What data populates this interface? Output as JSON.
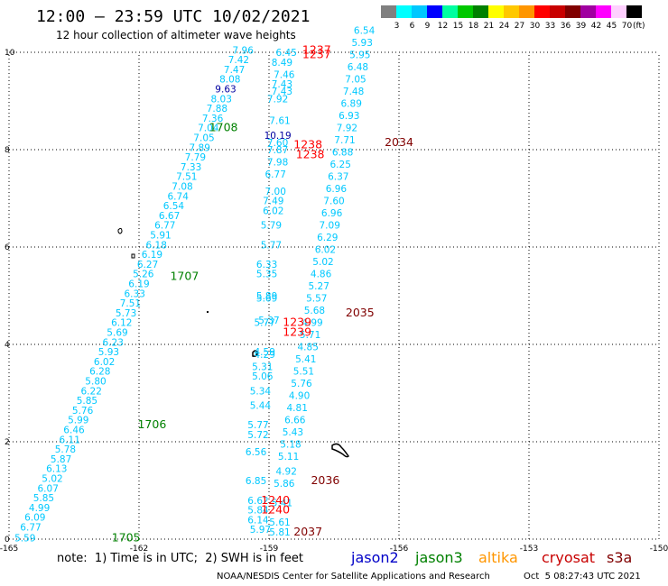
{
  "header": {
    "title": "12:00 — 23:59 UTC 10/02/2021",
    "subtitle": "12 hour collection of altimeter wave heights"
  },
  "scale": {
    "unit": "(ft)",
    "colors": [
      "#808080",
      "#00ffff",
      "#00c8ff",
      "#0000ff",
      "#00ffa0",
      "#00c800",
      "#008000",
      "#ffff00",
      "#ffc800",
      "#ff9600",
      "#ff0000",
      "#c80000",
      "#800000",
      "#a000a0",
      "#ff00ff",
      "#ffd0ff",
      "#000000"
    ],
    "labels": [
      "3",
      "6",
      "9",
      "12",
      "15",
      "18",
      "21",
      "24",
      "27",
      "30",
      "33",
      "36",
      "39",
      "42",
      "45",
      "70"
    ]
  },
  "axes": {
    "x_ticks": [
      "-165",
      "-162",
      "-159",
      "-156",
      "-153",
      "-150"
    ],
    "y_ticks": [
      "0",
      "2",
      "4",
      "6",
      "8",
      "10"
    ]
  },
  "colors": {
    "jason2": "#0000c8",
    "jason3": "#008000",
    "altika": "#ff9600",
    "cryosat": "#c80000",
    "s3a": "#800000",
    "cyan": "#00c8ff",
    "cyan_light": "#40e0f0",
    "dark_blue": "#0000a0",
    "green": "#008000",
    "red": "#ff0000",
    "dark_red": "#800000",
    "grid": "#000000"
  },
  "passes": [
    {
      "name": "track-a",
      "points": [
        [
          -164.63,
          0.03,
          "5.59",
          "cyan"
        ],
        [
          -164.5,
          0.25,
          "6.77",
          "cyan"
        ],
        [
          -164.4,
          0.45,
          "6.09",
          "cyan"
        ],
        [
          -164.3,
          0.65,
          "4.99",
          "cyan"
        ],
        [
          -164.2,
          0.85,
          "5.85",
          "cyan"
        ],
        [
          -164.1,
          1.05,
          "6.07",
          "cyan"
        ],
        [
          -164.0,
          1.25,
          "5.02",
          "cyan"
        ],
        [
          -163.9,
          1.45,
          "6.13",
          "cyan"
        ],
        [
          -163.8,
          1.65,
          "5.87",
          "cyan"
        ],
        [
          -163.7,
          1.85,
          "5.78",
          "cyan"
        ],
        [
          -163.6,
          2.05,
          "6.11",
          "cyan"
        ],
        [
          -163.5,
          2.25,
          "6.46",
          "cyan"
        ],
        [
          -163.4,
          2.45,
          "5.99",
          "cyan"
        ],
        [
          -163.3,
          2.65,
          "5.76",
          "cyan"
        ],
        [
          -163.2,
          2.85,
          "5.85",
          "cyan"
        ],
        [
          -163.1,
          3.05,
          "6.22",
          "cyan"
        ],
        [
          -163.0,
          3.25,
          "5.80",
          "cyan"
        ],
        [
          -162.9,
          3.45,
          "6.28",
          "cyan"
        ],
        [
          -162.8,
          3.65,
          "6.02",
          "cyan"
        ],
        [
          -162.7,
          3.85,
          "5.93",
          "cyan"
        ],
        [
          -162.6,
          4.05,
          "6.23",
          "cyan"
        ],
        [
          -162.5,
          4.25,
          "5.69",
          "cyan"
        ],
        [
          -162.4,
          4.45,
          "6.12",
          "cyan"
        ],
        [
          -162.3,
          4.65,
          "5.73",
          "cyan"
        ],
        [
          -162.2,
          4.85,
          "7.51",
          "cyan"
        ],
        [
          -162.1,
          5.05,
          "6.33",
          "cyan"
        ],
        [
          -162.0,
          5.25,
          "6.19",
          "cyan"
        ],
        [
          -161.9,
          5.45,
          "5.26",
          "cyan"
        ],
        [
          -161.8,
          5.65,
          "6.27",
          "cyan"
        ],
        [
          -161.7,
          5.85,
          "6.19",
          "cyan"
        ],
        [
          -161.6,
          6.05,
          "6.18",
          "cyan"
        ],
        [
          -161.5,
          6.25,
          "5.91",
          "cyan"
        ],
        [
          -161.4,
          6.45,
          "6.77",
          "cyan"
        ],
        [
          -161.3,
          6.65,
          "6.67",
          "cyan"
        ],
        [
          -161.2,
          6.85,
          "6.54",
          "cyan"
        ],
        [
          -161.1,
          7.05,
          "6.74",
          "cyan"
        ],
        [
          -161.0,
          7.25,
          "7.08",
          "cyan"
        ],
        [
          -160.9,
          7.45,
          "7.51",
          "cyan"
        ],
        [
          -160.8,
          7.65,
          "7.33",
          "cyan"
        ],
        [
          -160.7,
          7.85,
          "7.79",
          "cyan"
        ],
        [
          -160.6,
          8.05,
          "7.89",
          "cyan"
        ],
        [
          -160.5,
          8.25,
          "7.05",
          "cyan"
        ],
        [
          -160.4,
          8.45,
          "7.04",
          "cyan"
        ],
        [
          -160.3,
          8.65,
          "7.36",
          "cyan"
        ],
        [
          -160.2,
          8.85,
          "7.88",
          "cyan"
        ],
        [
          -160.1,
          9.05,
          "8.03",
          "cyan"
        ],
        [
          -160.0,
          9.25,
          "9.63",
          "dark_blue"
        ],
        [
          -159.9,
          9.45,
          "8.08",
          "cyan"
        ],
        [
          -159.8,
          9.65,
          "7.47",
          "cyan"
        ],
        [
          -159.7,
          9.85,
          "7.42",
          "cyan"
        ],
        [
          -159.6,
          10.05,
          "7.96",
          "cyan"
        ]
      ]
    },
    {
      "name": "track-b",
      "points": [
        [
          -159.2,
          0.2,
          "5.97",
          "cyan"
        ],
        [
          -159.25,
          0.4,
          "6.14",
          "cyan"
        ],
        [
          -159.25,
          0.6,
          "5.84",
          "cyan"
        ],
        [
          -159.25,
          0.8,
          "6.62",
          "cyan"
        ],
        [
          -159.3,
          1.2,
          "6.85",
          "cyan"
        ],
        [
          -159.3,
          1.8,
          "6.56",
          "cyan"
        ],
        [
          -159.25,
          2.15,
          "5.72",
          "cyan"
        ],
        [
          -159.25,
          2.35,
          "5.77",
          "cyan"
        ],
        [
          -159.2,
          2.75,
          "5.44",
          "cyan"
        ],
        [
          -159.2,
          3.05,
          "5.34",
          "cyan"
        ],
        [
          -159.15,
          3.35,
          "5.06",
          "cyan"
        ],
        [
          -159.15,
          3.55,
          "5.31",
          "cyan"
        ],
        [
          -159.1,
          3.85,
          "4.59",
          "cyan"
        ],
        [
          -159.1,
          4.45,
          "5.77",
          "cyan"
        ],
        [
          -159.0,
          4.5,
          "5.37",
          "cyan"
        ],
        [
          -159.05,
          4.95,
          "5.69",
          "cyan"
        ],
        [
          -159.05,
          5.45,
          "5.35",
          "cyan"
        ],
        [
          -159.05,
          5.65,
          "6.33",
          "cyan"
        ],
        [
          -158.95,
          6.05,
          "5.77",
          "cyan"
        ],
        [
          -158.95,
          6.45,
          "5.79",
          "cyan"
        ],
        [
          -158.9,
          6.75,
          "6.02",
          "cyan"
        ],
        [
          -158.9,
          6.95,
          "7.49",
          "cyan"
        ],
        [
          -158.85,
          7.15,
          "7.00",
          "cyan"
        ],
        [
          -158.85,
          7.5,
          "6.77",
          "cyan"
        ],
        [
          -158.8,
          7.75,
          "7.98",
          "cyan"
        ],
        [
          -158.8,
          8.15,
          "7.60",
          "cyan"
        ],
        [
          -158.8,
          8.3,
          "10.19",
          "dark_blue"
        ],
        [
          -158.75,
          8.6,
          "7.61",
          "cyan"
        ],
        [
          -158.7,
          9.2,
          "7.43",
          "cyan"
        ],
        [
          -158.65,
          9.55,
          "7.46",
          "cyan"
        ],
        [
          -158.6,
          10.0,
          "6.45",
          "cyan"
        ]
      ]
    },
    {
      "name": "track-c",
      "points": [
        [
          -158.75,
          0.15,
          "5.81",
          "cyan"
        ],
        [
          -158.75,
          0.35,
          "5.61",
          "cyan"
        ],
        [
          -158.7,
          0.75,
          "5.41",
          "cyan"
        ],
        [
          -158.65,
          1.15,
          "5.86",
          "cyan"
        ],
        [
          -158.6,
          1.4,
          "4.92",
          "cyan"
        ],
        [
          -158.55,
          1.7,
          "5.11",
          "cyan"
        ],
        [
          -158.5,
          1.95,
          "5.18",
          "cyan"
        ],
        [
          -158.45,
          2.2,
          "5.43",
          "cyan"
        ],
        [
          -158.4,
          2.45,
          "6.66",
          "cyan"
        ],
        [
          -158.35,
          2.7,
          "4.81",
          "cyan"
        ],
        [
          -158.3,
          2.95,
          "4.90",
          "cyan"
        ],
        [
          -158.25,
          3.2,
          "5.76",
          "cyan"
        ],
        [
          -158.2,
          3.45,
          "5.51",
          "cyan"
        ],
        [
          -158.15,
          3.7,
          "5.41",
          "cyan"
        ],
        [
          -158.1,
          3.95,
          "4.85",
          "cyan"
        ],
        [
          -158.05,
          4.2,
          "5.71",
          "cyan"
        ],
        [
          -158.0,
          4.45,
          "4.99",
          "cyan"
        ],
        [
          -157.95,
          4.7,
          "5.68",
          "cyan"
        ],
        [
          -157.9,
          4.95,
          "5.57",
          "cyan"
        ],
        [
          -157.85,
          5.2,
          "5.27",
          "cyan"
        ],
        [
          -157.8,
          5.45,
          "4.86",
          "cyan"
        ],
        [
          -157.75,
          5.7,
          "5.02",
          "cyan"
        ],
        [
          -157.7,
          5.95,
          "6.02",
          "cyan"
        ],
        [
          -157.65,
          6.2,
          "6.29",
          "cyan"
        ],
        [
          -157.6,
          6.45,
          "7.09",
          "cyan"
        ],
        [
          -157.55,
          6.7,
          "6.96",
          "cyan"
        ],
        [
          -157.5,
          6.95,
          "7.60",
          "cyan"
        ],
        [
          -157.45,
          7.2,
          "6.96",
          "cyan"
        ],
        [
          -157.4,
          7.45,
          "6.37",
          "cyan"
        ],
        [
          -157.35,
          7.7,
          "6.25",
          "cyan"
        ],
        [
          -157.3,
          7.95,
          "6.88",
          "cyan"
        ],
        [
          -157.25,
          8.2,
          "7.71",
          "cyan"
        ],
        [
          -157.2,
          8.45,
          "7.92",
          "cyan"
        ],
        [
          -157.15,
          8.7,
          "6.93",
          "cyan"
        ],
        [
          -157.1,
          8.95,
          "6.89",
          "cyan"
        ],
        [
          -157.05,
          9.2,
          "7.48",
          "cyan"
        ],
        [
          -157.0,
          9.45,
          "7.05",
          "cyan"
        ],
        [
          -156.95,
          9.7,
          "6.48",
          "cyan"
        ],
        [
          -156.9,
          9.95,
          "5.95",
          "cyan"
        ],
        [
          -156.85,
          10.2,
          "5.93",
          "cyan"
        ],
        [
          -156.8,
          10.45,
          "6.54",
          "cyan"
        ]
      ]
    },
    {
      "name": "extra-cyan",
      "points": [
        [
          -158.8,
          9.05,
          "7.92",
          "cyan"
        ],
        [
          -158.7,
          9.35,
          "7.43",
          "cyan"
        ],
        [
          -158.7,
          9.8,
          "8.49",
          "cyan"
        ],
        [
          -158.8,
          8.0,
          "7.87",
          "cyan"
        ],
        [
          -159.05,
          5.0,
          "5.89",
          "cyan"
        ],
        [
          -159.1,
          3.8,
          "4.29",
          "cyan"
        ]
      ]
    }
  ],
  "time_labels": [
    {
      "text": "1705",
      "lon": -162.3,
      "lat": 0.03,
      "color": "green"
    },
    {
      "text": "1706",
      "lon": -161.7,
      "lat": 2.35,
      "color": "green"
    },
    {
      "text": "1707",
      "lon": -160.95,
      "lat": 5.4,
      "color": "green"
    },
    {
      "text": "1708",
      "lon": -160.05,
      "lat": 8.45,
      "color": "green"
    },
    {
      "text": "1237",
      "lon": -157.9,
      "lat": 10.05,
      "color": "red"
    },
    {
      "text": "1237",
      "lon": -157.9,
      "lat": 9.95,
      "color": "red"
    },
    {
      "text": "1238",
      "lon": -158.1,
      "lat": 8.1,
      "color": "red"
    },
    {
      "text": "1238",
      "lon": -158.05,
      "lat": 7.9,
      "color": "red"
    },
    {
      "text": "1239",
      "lon": -158.35,
      "lat": 4.45,
      "color": "red"
    },
    {
      "text": "1239",
      "lon": -158.35,
      "lat": 4.25,
      "color": "red"
    },
    {
      "text": "1240",
      "lon": -158.85,
      "lat": 0.8,
      "color": "red"
    },
    {
      "text": "1240",
      "lon": -158.85,
      "lat": 0.6,
      "color": "red"
    },
    {
      "text": "2034",
      "lon": -156.0,
      "lat": 8.15,
      "color": "dark_red"
    },
    {
      "text": "2035",
      "lon": -156.9,
      "lat": 4.65,
      "color": "dark_red"
    },
    {
      "text": "2036",
      "lon": -157.7,
      "lat": 1.2,
      "color": "dark_red"
    },
    {
      "text": "2037",
      "lon": -158.1,
      "lat": 0.15,
      "color": "dark_red"
    }
  ],
  "footer": {
    "note": "note:  1) Time is in UTC;  2) SWH is in feet",
    "legend": [
      {
        "label": "jason2",
        "color": "jason2"
      },
      {
        "label": "jason3",
        "color": "jason3"
      },
      {
        "label": "altika",
        "color": "altika"
      },
      {
        "label": "cryosat",
        "color": "cryosat"
      },
      {
        "label": "s3a",
        "color": "s3a"
      }
    ],
    "credit": "NOAA/NESDIS Center for Satellite Applications and Research",
    "timestamp": "Oct  5 08:27:43 UTC 2021"
  }
}
